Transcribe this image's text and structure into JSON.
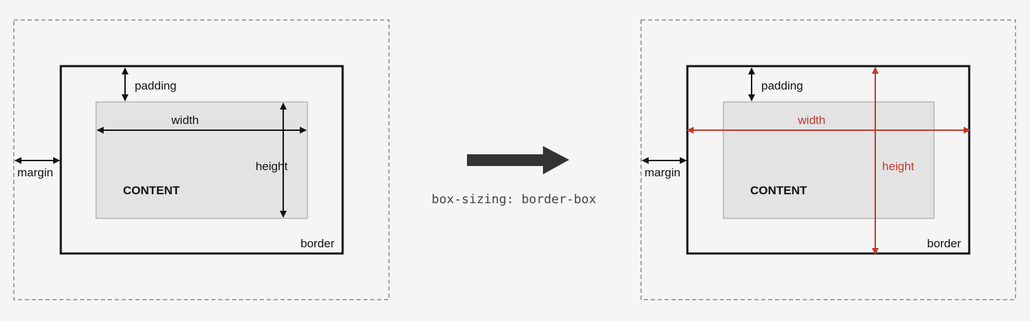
{
  "colors": {
    "background": "#f5f5f5",
    "content_fill": "#e3e3e3",
    "outline": "#111111",
    "margin_dash": "#8a8a8a",
    "highlight": "#c0392b",
    "transition_arrow": "#333333"
  },
  "left_box": {
    "padding_label": "padding",
    "width_label": "width",
    "height_label": "height",
    "margin_label": "margin",
    "content_label": "CONTENT",
    "border_label": "border"
  },
  "transition": {
    "code_label": "box-sizing: border-box",
    "icon": "arrow-right-icon"
  },
  "right_box": {
    "padding_label": "padding",
    "width_label": "width",
    "height_label": "height",
    "margin_label": "margin",
    "content_label": "CONTENT",
    "border_label": "border"
  }
}
